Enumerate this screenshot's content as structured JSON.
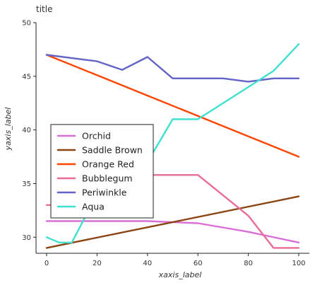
{
  "chart_data": {
    "type": "line",
    "title": "title",
    "xlabel": "xaxis_label",
    "ylabel": "yaxis_label",
    "xlim": [
      0,
      100
    ],
    "ylim": [
      28.5,
      50
    ],
    "x_ticks": [
      "0",
      "20",
      "40",
      "60",
      "80",
      "100"
    ],
    "y_ticks": [
      "30",
      "35",
      "40",
      "45",
      "50"
    ],
    "grid": false,
    "legend_position": "left-center",
    "series": [
      {
        "name": "Orchid",
        "color": "#da70d6",
        "x": [
          0,
          20,
          40,
          60,
          80,
          100
        ],
        "y": [
          31.5,
          31.5,
          31.5,
          31.3,
          30.5,
          29.5
        ]
      },
      {
        "name": "Saddle Brown",
        "color": "#8b4513",
        "x": [
          0,
          100
        ],
        "y": [
          29.0,
          33.8
        ]
      },
      {
        "name": "Orange Red",
        "color": "#ff4500",
        "x": [
          0,
          20,
          40,
          60,
          80,
          100
        ],
        "y": [
          47.0,
          45.1,
          43.2,
          41.3,
          39.4,
          37.5
        ]
      },
      {
        "name": "Bubblegum",
        "color": "#e96d94",
        "x": [
          0,
          10,
          20,
          40,
          60,
          80,
          90,
          100
        ],
        "y": [
          33.0,
          33.0,
          33.5,
          35.8,
          35.8,
          32.0,
          29.0,
          29.0
        ]
      },
      {
        "name": "Periwinkle",
        "color": "#6363c8",
        "x": [
          0,
          20,
          30,
          40,
          50,
          60,
          70,
          80,
          90,
          100
        ],
        "y": [
          47.0,
          46.4,
          45.6,
          46.8,
          44.8,
          44.8,
          44.8,
          44.5,
          44.8,
          44.8
        ]
      },
      {
        "name": "Aqua",
        "color": "#40e0d0",
        "x": [
          0,
          5,
          10,
          20,
          30,
          40,
          50,
          60,
          70,
          80,
          90,
          100
        ],
        "y": [
          30.0,
          29.5,
          29.5,
          34.0,
          38.0,
          37.0,
          41.0,
          41.0,
          42.5,
          44.0,
          45.5,
          48.0
        ]
      }
    ]
  }
}
